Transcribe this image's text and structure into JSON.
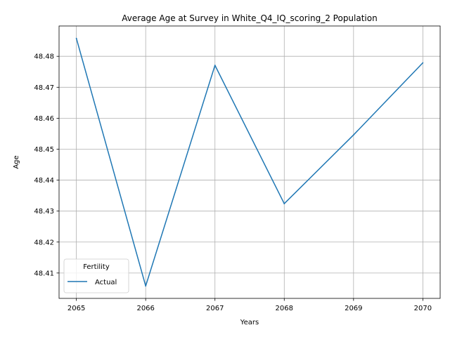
{
  "chart_data": {
    "type": "line",
    "title": "Average Age at Survey in White_Q4_IQ_scoring_2 Population",
    "xlabel": "Years",
    "ylabel": "Age",
    "x": [
      2065,
      2066,
      2067,
      2068,
      2069,
      2070
    ],
    "xticks": [
      "2065",
      "2066",
      "2067",
      "2068",
      "2069",
      "2070"
    ],
    "xlim": [
      2064.75,
      2070.25
    ],
    "yticks": [
      "48.41",
      "48.42",
      "48.43",
      "48.44",
      "48.45",
      "48.46",
      "48.47",
      "48.48"
    ],
    "ytick_values": [
      48.41,
      48.42,
      48.43,
      48.44,
      48.45,
      48.46,
      48.47,
      48.48
    ],
    "ylim": [
      48.4018,
      48.4898
    ],
    "grid": true,
    "legend": {
      "title": "Fertility",
      "position": "lower-left"
    },
    "series": [
      {
        "name": "Actual",
        "color": "#1f77b4",
        "values": [
          48.4858,
          48.4058,
          48.4771,
          48.4324,
          48.4546,
          48.4779
        ]
      }
    ]
  }
}
